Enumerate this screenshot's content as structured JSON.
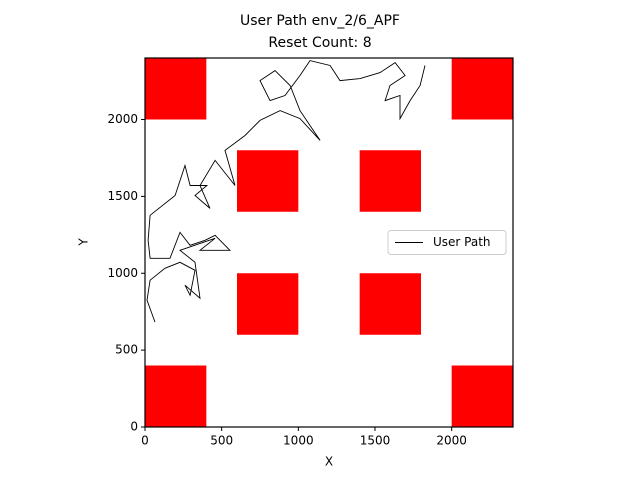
{
  "chart_data": {
    "type": "line",
    "title": "User Path env_2/6_APF",
    "subtitle": "Reset Count: 8",
    "x_label": "X",
    "y_label": "Y",
    "xlim": [
      0,
      2400
    ],
    "ylim": [
      0,
      2400
    ],
    "xticks": [
      0,
      500,
      1000,
      1500,
      2000
    ],
    "yticks": [
      0,
      500,
      1000,
      1500,
      2000
    ],
    "grid": false,
    "legend": "center right",
    "obstacle_color": "#ff0000",
    "obstacles": [
      {
        "x0": 0,
        "y0": 2000,
        "x1": 400,
        "y1": 2400
      },
      {
        "x0": 2000,
        "y0": 2000,
        "x1": 2400,
        "y1": 2400
      },
      {
        "x0": 600,
        "y0": 1400,
        "x1": 1000,
        "y1": 1800
      },
      {
        "x0": 1400,
        "y0": 1400,
        "x1": 1800,
        "y1": 1800
      },
      {
        "x0": 600,
        "y0": 600,
        "x1": 1000,
        "y1": 1000
      },
      {
        "x0": 1400,
        "y0": 600,
        "x1": 1800,
        "y1": 1000
      },
      {
        "x0": 0,
        "y0": 0,
        "x1": 400,
        "y1": 400
      },
      {
        "x0": 2000,
        "y0": 0,
        "x1": 2400,
        "y1": 400
      }
    ],
    "x": [
      65,
      13,
      33,
      130,
      228,
      326,
      294,
      261,
      359,
      326,
      228,
      457,
      359,
      554,
      457,
      391,
      294,
      228,
      163,
      33,
      20,
      33,
      196,
      261,
      294,
      404,
      326,
      424,
      359,
      457,
      587,
      522,
      652,
      750,
      881,
      1011,
      1142,
      1076,
      1011,
      946,
      848,
      750,
      815,
      913,
      1011,
      1076,
      1207,
      1272,
      1403,
      1533,
      1631,
      1696,
      1598,
      1566,
      1663,
      1663,
      1729,
      1794,
      1826
    ],
    "series": [
      {
        "name": "User Path",
        "color": "#000000",
        "values": [
          682,
          825,
          955,
          1032,
          1071,
          1019,
          857,
          922,
          838,
          1071,
          1149,
          1227,
          1149,
          1149,
          1247,
          1214,
          1182,
          1266,
          1097,
          1097,
          1214,
          1377,
          1506,
          1701,
          1571,
          1571,
          1506,
          1422,
          1571,
          1734,
          1571,
          1799,
          1896,
          1994,
          2058,
          2006,
          1864,
          1961,
          2058,
          2221,
          2318,
          2253,
          2123,
          2156,
          2286,
          2383,
          2351,
          2253,
          2266,
          2305,
          2370,
          2286,
          2221,
          2123,
          2156,
          2006,
          2123,
          2221,
          2351
        ]
      }
    ]
  }
}
